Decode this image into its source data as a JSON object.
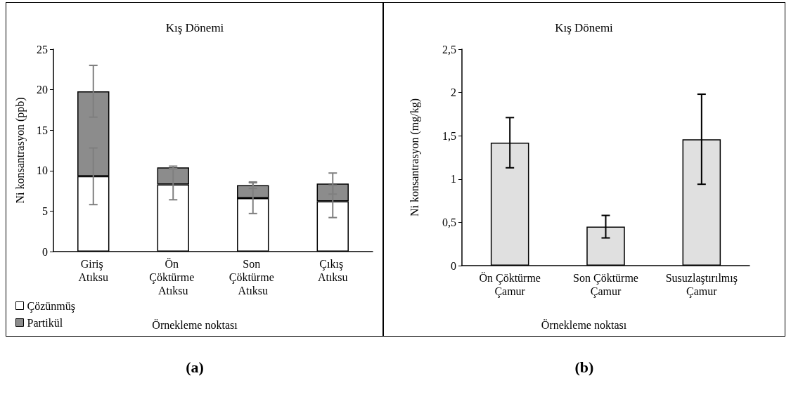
{
  "chart_data": [
    {
      "type": "bar",
      "title": "Kış Dönemi",
      "xlabel": "Örnekleme noktası",
      "ylabel": "Ni konsantrasyon (ppb)",
      "categories": [
        "Giriş Atıksu",
        "Ön Çöktürme Atıksu",
        "Son Çöktürme Atıksu",
        "Çıkış Atıksu"
      ],
      "stacked": true,
      "ylim": [
        0,
        25
      ],
      "yticks": [
        0,
        5,
        10,
        15,
        20,
        25
      ],
      "grid": false,
      "legend": "bottom left",
      "annotations": [
        "(a)"
      ],
      "series": [
        {
          "name": "Çözünmüş",
          "color": "#ffffff",
          "values": [
            9.3,
            8.3,
            6.6,
            6.2
          ],
          "errors": [
            3.5,
            1.9,
            1.9,
            2.0
          ]
        },
        {
          "name": "Partikül",
          "color": "#8c8c8c",
          "values": [
            10.5,
            2.1,
            1.6,
            2.2
          ],
          "errors": [
            3.2,
            0.15,
            0.4,
            1.3
          ]
        }
      ]
    },
    {
      "type": "bar",
      "title": "Kış Dönemi",
      "xlabel": "Örnekleme noktası",
      "ylabel": "Ni konsantrasyon (mg/kg)",
      "categories": [
        "Ön Çöktürme Çamur",
        "Son Çöktürme Çamur",
        "Susuzlaştırılmış Çamur"
      ],
      "ylim": [
        0,
        2.5
      ],
      "yticks": [
        {
          "value": 0,
          "label": "0"
        },
        {
          "value": 0.5,
          "label": "0,5"
        },
        {
          "value": 1,
          "label": "1"
        },
        {
          "value": 1.5,
          "label": "1,5"
        },
        {
          "value": 2,
          "label": "2"
        },
        {
          "value": 2.5,
          "label": "2,5"
        }
      ],
      "grid": false,
      "legend": false,
      "annotations": [
        "(b)"
      ],
      "series": [
        {
          "color": "#e0e0e0",
          "values": [
            1.42,
            0.45,
            1.46
          ],
          "errors": [
            0.29,
            0.13,
            0.52
          ]
        }
      ]
    }
  ]
}
